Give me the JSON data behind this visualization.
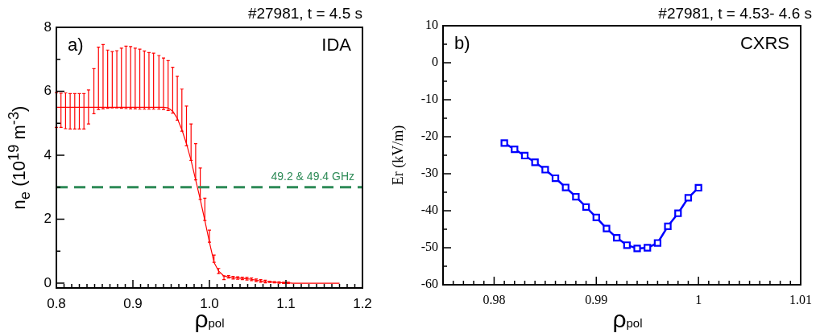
{
  "chart_data": [
    {
      "type": "line",
      "title": "#27981, t = 4.5 s",
      "xlabel": "ρ$_{pol}$",
      "ylabel": "n$_{e}$  (10$^{19}$ m$^{-3}$)",
      "annotations": [
        "a)",
        "IDA"
      ],
      "xlim": [
        0.8,
        1.2
      ],
      "xticks": [
        0.8,
        {
          "value": 0.81,
          "label": null
        },
        {
          "value": 0.82,
          "label": null
        },
        {
          "value": 0.83,
          "label": null
        },
        {
          "value": 0.84,
          "label": null
        },
        {
          "value": 0.85,
          "label": null
        },
        {
          "value": 0.86,
          "label": null
        },
        {
          "value": 0.87,
          "label": null
        },
        {
          "value": 0.88,
          "label": null
        },
        {
          "value": 0.89,
          "label": null
        },
        0.9,
        {
          "value": 0.91,
          "label": null
        },
        {
          "value": 0.92,
          "label": null
        },
        {
          "value": 0.93,
          "label": null
        },
        {
          "value": 0.94,
          "label": null
        },
        {
          "value": 0.95,
          "label": null
        },
        {
          "value": 0.96,
          "label": null
        },
        {
          "value": 0.97,
          "label": null
        },
        {
          "value": 0.98,
          "label": null
        },
        {
          "value": 0.99,
          "label": null
        },
        {
          "value": 1,
          "label": "1.0"
        },
        {
          "value": 1.01,
          "label": null
        },
        {
          "value": 1.02,
          "label": null
        },
        {
          "value": 1.03,
          "label": null
        },
        {
          "value": 1.04,
          "label": null
        },
        {
          "value": 1.05,
          "label": null
        },
        {
          "value": 1.06,
          "label": null
        },
        {
          "value": 1.07,
          "label": null
        },
        {
          "value": 1.08,
          "label": null
        },
        {
          "value": 1.09,
          "label": null
        },
        1.1,
        {
          "value": 1.11,
          "label": null
        },
        {
          "value": 1.12,
          "label": null
        },
        {
          "value": 1.13,
          "label": null
        },
        {
          "value": 1.14,
          "label": null
        },
        {
          "value": 1.15,
          "label": null
        },
        {
          "value": 1.16,
          "label": null
        },
        {
          "value": 1.17,
          "label": null
        },
        {
          "value": 1.18,
          "label": null
        },
        {
          "value": 1.19,
          "label": null
        },
        1.2
      ],
      "ylim": [
        -0.15,
        8
      ],
      "yticks": [
        0,
        {
          "value": 1,
          "label": null
        },
        2,
        {
          "value": 3,
          "label": null
        },
        4,
        {
          "value": 5,
          "label": null
        },
        6,
        {
          "value": 7,
          "label": null
        },
        8
      ],
      "marker": "none",
      "line_style": "solid",
      "ref_lines": [
        {
          "axis": "y",
          "value": 3,
          "label": "49.2 & 49.4 GHz",
          "color": "#2e8b57",
          "line_style": "dashed"
        }
      ],
      "series": [
        {
          "color": "#ff0000",
          "x": [
            0.8,
            0.806,
            0.812,
            0.818,
            0.824,
            0.83,
            0.836,
            0.842,
            0.849,
            0.855,
            0.861,
            0.867,
            0.873,
            0.879,
            0.885,
            0.891,
            0.897,
            0.903,
            0.909,
            0.915,
            0.921,
            0.927,
            0.934,
            0.94,
            0.946,
            0.952,
            0.958,
            0.964,
            0.97,
            0.976,
            0.982,
            0.988,
            0.994,
            1.0,
            1.006,
            1.012,
            1.019,
            1.025,
            1.031,
            1.037,
            1.043,
            1.049,
            1.055,
            1.061,
            1.067,
            1.073,
            1.079,
            1.085,
            1.091,
            1.097,
            1.103,
            1.109,
            1.115,
            1.121,
            1.127,
            1.133,
            1.139,
            1.145,
            1.151,
            1.158,
            1.164,
            1.17
          ],
          "values": [
            5.5,
            5.5,
            5.5,
            5.5,
            5.5,
            5.5,
            5.5,
            5.5,
            5.5,
            5.5,
            5.5,
            5.5,
            5.5,
            5.5,
            5.5,
            5.5,
            5.5,
            5.5,
            5.5,
            5.5,
            5.5,
            5.5,
            5.5,
            5.5,
            5.48,
            5.38,
            5.15,
            4.8,
            4.36,
            3.84,
            3.23,
            2.62,
            1.96,
            1.28,
            0.65,
            0.38,
            0.22,
            0.2,
            0.17,
            0.16,
            0.15,
            0.14,
            0.12,
            0.09,
            0.07,
            0.05,
            0.04,
            0.03,
            0.02,
            0.01,
            0.01,
            0,
            0,
            0,
            0,
            0,
            0,
            0,
            0,
            0,
            0,
            0
          ],
          "errors": [
            [
              4.87,
              5.96
            ],
            [
              4.87,
              5.94
            ],
            [
              4.83,
              5.95
            ],
            [
              4.82,
              5.93
            ],
            [
              4.82,
              5.93
            ],
            [
              4.82,
              5.93
            ],
            [
              4.82,
              5.93
            ],
            [
              4.98,
              6.04
            ],
            [
              5.3,
              6.71
            ],
            [
              5.43,
              7.38
            ],
            [
              5.45,
              7.46
            ],
            [
              5.47,
              7.29
            ],
            [
              5.48,
              7.24
            ],
            [
              5.48,
              7.27
            ],
            [
              5.47,
              7.35
            ],
            [
              5.46,
              7.41
            ],
            [
              5.45,
              7.4
            ],
            [
              5.45,
              7.35
            ],
            [
              5.44,
              7.32
            ],
            [
              5.44,
              7.26
            ],
            [
              5.44,
              7.21
            ],
            [
              5.44,
              7.19
            ],
            [
              5.44,
              7.12
            ],
            [
              5.43,
              7.04
            ],
            [
              5.4,
              6.96
            ],
            [
              5.32,
              6.75
            ],
            [
              5.1,
              6.47
            ],
            [
              4.75,
              6.07
            ],
            [
              4.3,
              5.54
            ],
            [
              3.84,
              4.98
            ],
            [
              3.23,
              4.36
            ],
            [
              2.62,
              3.6
            ],
            [
              1.96,
              2.66
            ],
            [
              1.28,
              1.66
            ],
            [
              0.65,
              0.88
            ],
            [
              0.3,
              0.46
            ],
            [
              0.11,
              0.23
            ],
            0.04,
            0.04,
            0.04,
            0.04,
            0.04,
            0.04,
            0.04,
            0.04,
            0.04,
            0.02,
            0.02,
            0.02,
            0.02,
            0.02,
            null,
            null,
            null,
            null,
            null,
            null,
            null,
            null,
            null,
            null,
            null
          ]
        }
      ]
    },
    {
      "type": "line",
      "title": "#27981, t = 4.53- 4.6 s",
      "xlabel": "ρ$_{pol}$",
      "ylabel": "Er (kV/m)",
      "annotations": [
        "b)",
        "CXRS"
      ],
      "xlim": [
        0.975,
        1.01
      ],
      "xticks": [
        {
          "value": 0.976,
          "label": null
        },
        {
          "value": 0.977,
          "label": null
        },
        {
          "value": 0.978,
          "label": null
        },
        {
          "value": 0.979,
          "label": null
        },
        0.98,
        {
          "value": 0.981,
          "label": null
        },
        {
          "value": 0.982,
          "label": null
        },
        {
          "value": 0.983,
          "label": null
        },
        {
          "value": 0.984,
          "label": null
        },
        {
          "value": 0.985,
          "label": null
        },
        {
          "value": 0.986,
          "label": null
        },
        {
          "value": 0.987,
          "label": null
        },
        {
          "value": 0.988,
          "label": null
        },
        {
          "value": 0.989,
          "label": null
        },
        0.99,
        {
          "value": 0.991,
          "label": null
        },
        {
          "value": 0.992,
          "label": null
        },
        {
          "value": 0.993,
          "label": null
        },
        {
          "value": 0.994,
          "label": null
        },
        {
          "value": 0.995,
          "label": null
        },
        {
          "value": 0.996,
          "label": null
        },
        {
          "value": 0.997,
          "label": null
        },
        {
          "value": 0.998,
          "label": null
        },
        {
          "value": 0.999,
          "label": null
        },
        1,
        {
          "value": 1.001,
          "label": null
        },
        {
          "value": 1.002,
          "label": null
        },
        {
          "value": 1.003,
          "label": null
        },
        {
          "value": 1.004,
          "label": null
        },
        {
          "value": 1.005,
          "label": null
        },
        {
          "value": 1.006,
          "label": null
        },
        {
          "value": 1.007,
          "label": null
        },
        {
          "value": 1.008,
          "label": null
        },
        {
          "value": 1.009,
          "label": null
        },
        1.01
      ],
      "ylim": [
        -60,
        10
      ],
      "yticks": [
        -60,
        {
          "value": -55,
          "label": null
        },
        -50,
        {
          "value": -45,
          "label": null
        },
        -40,
        {
          "value": -35,
          "label": null
        },
        -30,
        {
          "value": -25,
          "label": null
        },
        -20,
        {
          "value": -15,
          "label": null
        },
        -10,
        {
          "value": -5,
          "label": null
        },
        0,
        {
          "value": 5,
          "label": null
        },
        10
      ],
      "marker": "square",
      "line_style": "solid",
      "series": [
        {
          "color": "#0000ff",
          "x": [
            0.981,
            0.982,
            0.983,
            0.984,
            0.985,
            0.986,
            0.987,
            0.988,
            0.989,
            0.99,
            0.991,
            0.992,
            0.993,
            0.994,
            0.995,
            0.996,
            0.997,
            0.998,
            0.999,
            1.0
          ],
          "values": [
            -21.7,
            -23.4,
            -25.1,
            -26.9,
            -28.9,
            -31.2,
            -33.7,
            -36.2,
            -39.0,
            -41.8,
            -44.8,
            -47.3,
            -49.3,
            -50.2,
            -50.0,
            -48.7,
            -44.2,
            -40.7,
            -36.5,
            -33.8
          ]
        }
      ]
    }
  ]
}
